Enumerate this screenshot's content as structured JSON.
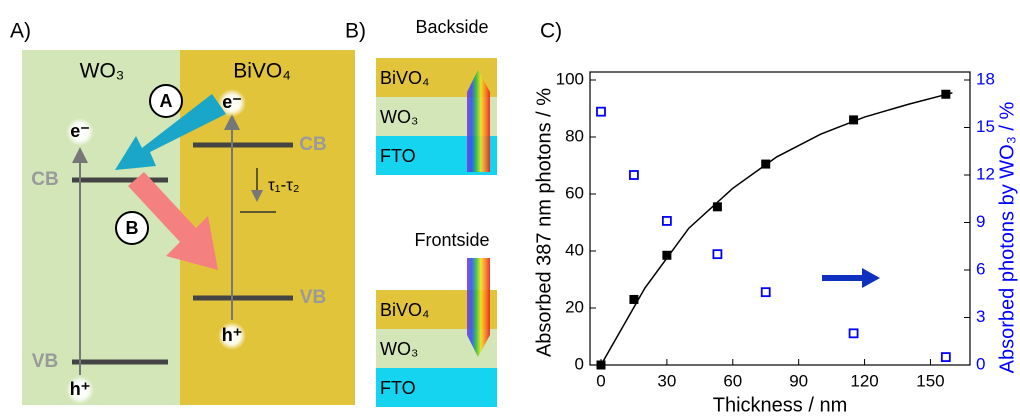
{
  "panel_a": {
    "label": "A)",
    "left_material": "WO₃",
    "right_material": "BiVO₄",
    "electron_left": "e⁻",
    "electron_right": "e⁻",
    "hole_left": "h⁺",
    "hole_right": "h⁺",
    "cb_left": "CB",
    "vb_left": "VB",
    "cb_right": "CB",
    "vb_right": "VB",
    "path_a": "A",
    "path_b": "B",
    "lifetime": "τ₁-τ₂"
  },
  "panel_b": {
    "label": "B)",
    "backside": {
      "title": "Backside",
      "layers": [
        "BiVO₄",
        "WO₃",
        "FTO"
      ]
    },
    "frontside": {
      "title": "Frontside",
      "layers": [
        "BiVO₄",
        "WO₃",
        "FTO"
      ]
    }
  },
  "panel_c_label": "C)",
  "chart_data": {
    "type": "scatter",
    "xlabel": "Thickness / nm",
    "ylabel": "Absorbed 387 nm photons / %",
    "y2label": "Absorbed photons by WO₃ / %",
    "xlim": [
      -5,
      168
    ],
    "xticks": [
      0,
      30,
      60,
      90,
      120,
      150
    ],
    "ylim": [
      0,
      100
    ],
    "yticks": [
      0,
      20,
      40,
      60,
      80,
      100
    ],
    "y2lim": [
      0,
      18
    ],
    "y2ticks": [
      0,
      3,
      6,
      9,
      12,
      15,
      18
    ],
    "y2color": "#0000ff",
    "series": [
      {
        "color": "#000000",
        "marker": "filled",
        "x": [
          0,
          15,
          30,
          53,
          75,
          115,
          157
        ],
        "values": [
          0,
          23,
          38.5,
          55.5,
          70.5,
          86,
          95
        ]
      },
      {
        "color": "#0000ff",
        "marker": "open",
        "axis": "y2",
        "x": [
          0,
          15,
          30,
          53,
          75,
          115,
          157
        ],
        "values": [
          16,
          12,
          9.1,
          7,
          4.6,
          2,
          0.5
        ]
      },
      {
        "type": "line",
        "color": "#000000",
        "x": [
          0,
          20,
          40,
          60,
          80,
          100,
          120,
          140,
          160
        ],
        "values": [
          0,
          27,
          48,
          62,
          73,
          81,
          87,
          91.5,
          95.5
        ]
      }
    ]
  }
}
